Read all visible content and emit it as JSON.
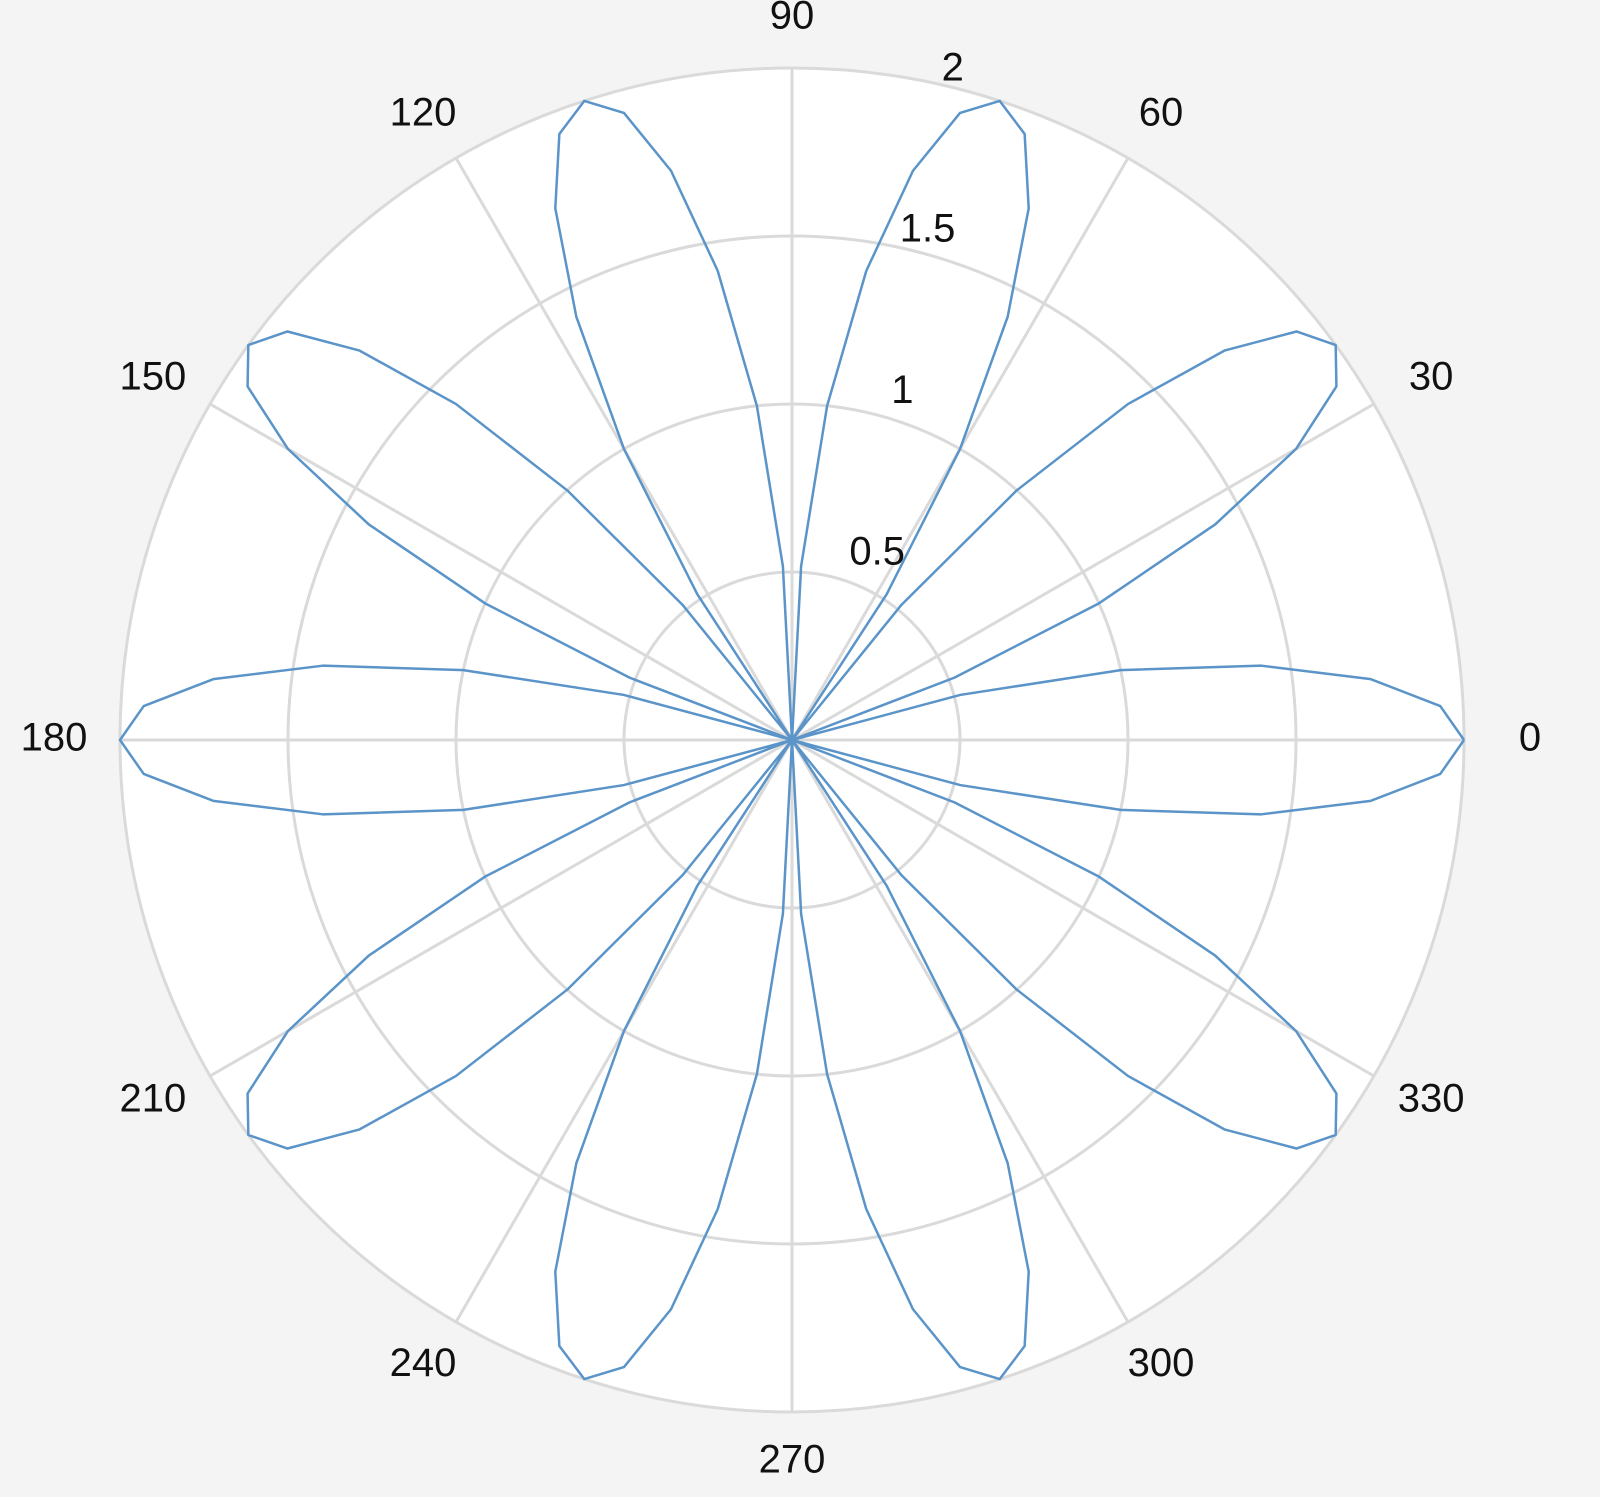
{
  "chart_data": {
    "type": "polar",
    "rlim": [
      0,
      2
    ],
    "rticks": [
      0.5,
      1,
      1.5,
      2
    ],
    "thetaticks": [
      0,
      30,
      60,
      90,
      120,
      150,
      180,
      210,
      240,
      270,
      300,
      330
    ],
    "grid": true,
    "series": [
      {
        "color": "#5a94c8",
        "theta": [
          0,
          3,
          6,
          9,
          12,
          15,
          18,
          21,
          24,
          27,
          30,
          33,
          36,
          39,
          42,
          45,
          48,
          51,
          54,
          57,
          60,
          63,
          66,
          69,
          72,
          75,
          78,
          81,
          84,
          87,
          90,
          93,
          96,
          99,
          102,
          105,
          108,
          111,
          114,
          117,
          120,
          123,
          126,
          129,
          132,
          135,
          138,
          141,
          144,
          147,
          150,
          153,
          156,
          159,
          162,
          165,
          168,
          171,
          174,
          177,
          180,
          183,
          186,
          189,
          192,
          195,
          198,
          201,
          204,
          207,
          210,
          213,
          216,
          219,
          222,
          225,
          228,
          231,
          234,
          237,
          240,
          243,
          246,
          249,
          252,
          255,
          258,
          261,
          264,
          267,
          270,
          273,
          276,
          279,
          282,
          285,
          288,
          291,
          294,
          297,
          300,
          303,
          306,
          309,
          312,
          315,
          318,
          321,
          324,
          327,
          330,
          333,
          336,
          339,
          342,
          345,
          348,
          351,
          354,
          357,
          360
        ],
        "r": [
          2,
          1.932,
          1.732,
          1.414,
          1,
          0.518,
          0,
          0.518,
          1,
          1.414,
          1.732,
          1.932,
          2,
          1.932,
          1.732,
          1.414,
          1,
          0.518,
          0,
          0.518,
          1,
          1.414,
          1.732,
          1.932,
          2,
          1.932,
          1.732,
          1.414,
          1,
          0.518,
          0,
          0.518,
          1,
          1.414,
          1.732,
          1.932,
          2,
          1.932,
          1.732,
          1.414,
          1,
          0.518,
          0,
          0.518,
          1,
          1.414,
          1.732,
          1.932,
          2,
          1.932,
          1.732,
          1.414,
          1,
          0.518,
          0,
          0.518,
          1,
          1.414,
          1.732,
          1.932,
          2,
          1.932,
          1.732,
          1.414,
          1,
          0.518,
          0,
          0.518,
          1,
          1.414,
          1.732,
          1.932,
          2,
          1.932,
          1.732,
          1.414,
          1,
          0.518,
          0,
          0.518,
          1,
          1.414,
          1.732,
          1.932,
          2,
          1.932,
          1.732,
          1.414,
          1,
          0.518,
          0,
          0.518,
          1,
          1.414,
          1.732,
          1.932,
          2,
          1.932,
          1.732,
          1.414,
          1,
          0.518,
          0,
          0.518,
          1,
          1.414,
          1.732,
          1.932,
          2,
          1.932,
          1.732,
          1.414,
          1,
          0.518,
          0,
          0.518,
          1,
          1.414,
          1.732,
          1.932,
          2
        ]
      }
    ]
  }
}
